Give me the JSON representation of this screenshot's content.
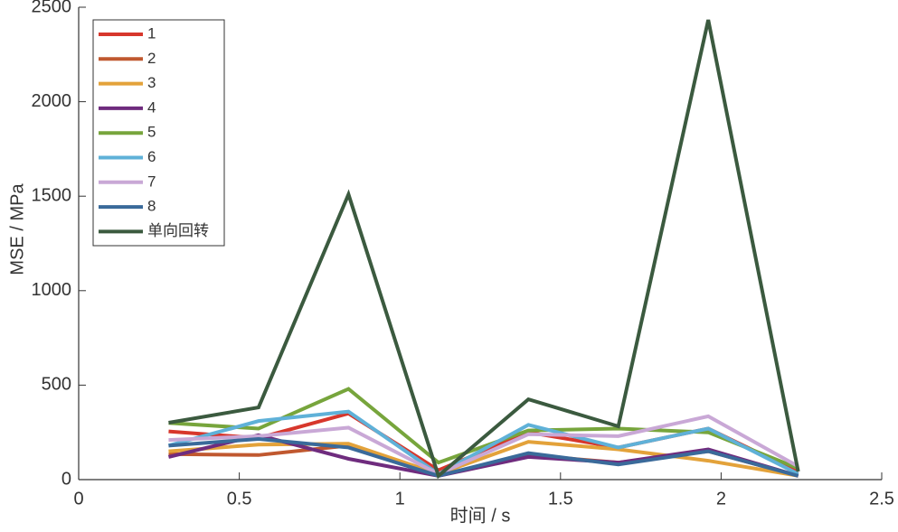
{
  "chart_data": {
    "type": "line",
    "x_label": "时间 / s",
    "y_label": "MSE / MPa",
    "x": [
      0.28,
      0.56,
      0.84,
      1.12,
      1.4,
      1.68,
      1.96,
      2.24
    ],
    "series": [
      {
        "name": "1",
        "color": "#d7372c",
        "values": [
          255,
          220,
          350,
          50,
          250,
          170,
          270,
          40
        ]
      },
      {
        "name": "2",
        "color": "#c0582f",
        "values": [
          135,
          130,
          180,
          20,
          130,
          90,
          150,
          20
        ]
      },
      {
        "name": "3",
        "color": "#e3a23a",
        "values": [
          150,
          185,
          190,
          30,
          200,
          160,
          100,
          20
        ]
      },
      {
        "name": "4",
        "color": "#6f2c7e",
        "values": [
          120,
          235,
          110,
          20,
          120,
          90,
          160,
          20
        ]
      },
      {
        "name": "5",
        "color": "#77a53c",
        "values": [
          300,
          270,
          480,
          90,
          260,
          270,
          250,
          60
        ]
      },
      {
        "name": "6",
        "color": "#5fb1d8",
        "values": [
          180,
          310,
          360,
          30,
          290,
          170,
          270,
          30
        ]
      },
      {
        "name": "7",
        "color": "#c9a8d6",
        "values": [
          210,
          230,
          275,
          30,
          240,
          230,
          335,
          70
        ]
      },
      {
        "name": "8",
        "color": "#3a6a9a",
        "values": [
          180,
          215,
          170,
          20,
          140,
          80,
          150,
          20
        ]
      },
      {
        "name": "单向回转",
        "color": "#3b5a3f",
        "values": [
          301,
          382,
          1510,
          20,
          425,
          282,
          2433,
          43
        ]
      }
    ],
    "xlim": [
      0,
      2.5
    ],
    "xticks": [
      0,
      0.5,
      1,
      1.5,
      2,
      2.5
    ],
    "ylim": [
      0,
      2500
    ],
    "yticks": [
      0,
      500,
      1000,
      1500,
      2000,
      2500
    ],
    "legend": "upper left"
  }
}
